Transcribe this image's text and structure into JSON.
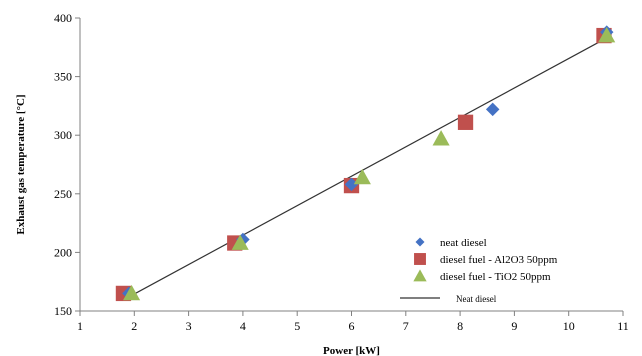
{
  "chart_data": {
    "type": "scatter",
    "xlabel": "Power [kW]",
    "ylabel": "Exhaust gas temperature [°C]",
    "xlim": [
      1,
      11
    ],
    "ylim": [
      150,
      400
    ],
    "x_ticks": [
      "1",
      "2",
      "3",
      "4",
      "5",
      "6",
      "7",
      "8",
      "9",
      "10",
      "11"
    ],
    "y_ticks": [
      "150",
      "200",
      "250",
      "300",
      "350",
      "400"
    ],
    "grid": false,
    "legend_position": "bottom-right",
    "series": [
      {
        "name": "neat diesel",
        "marker": "diamond",
        "color": "#4472C4",
        "x": [
          1.9,
          4.0,
          6.0,
          8.6,
          10.7
        ],
        "y": [
          165,
          211,
          258,
          322,
          388
        ]
      },
      {
        "name": "diesel fuel - Al2O3 50ppm",
        "marker": "square",
        "color": "#C0504D",
        "x": [
          1.8,
          3.85,
          6.0,
          8.1,
          10.65
        ],
        "y": [
          165,
          208,
          257,
          311,
          385
        ]
      },
      {
        "name": "diesel fuel - TiO2 50ppm",
        "marker": "triangle",
        "color": "#9BBB59",
        "x": [
          1.95,
          3.95,
          6.2,
          7.65,
          10.7
        ],
        "y": [
          165,
          208,
          264,
          297,
          385
        ]
      }
    ],
    "trendline": {
      "name": "Neat diesel",
      "color": "#333333",
      "x": [
        1.9,
        10.7
      ],
      "y": [
        162,
        383
      ]
    }
  }
}
